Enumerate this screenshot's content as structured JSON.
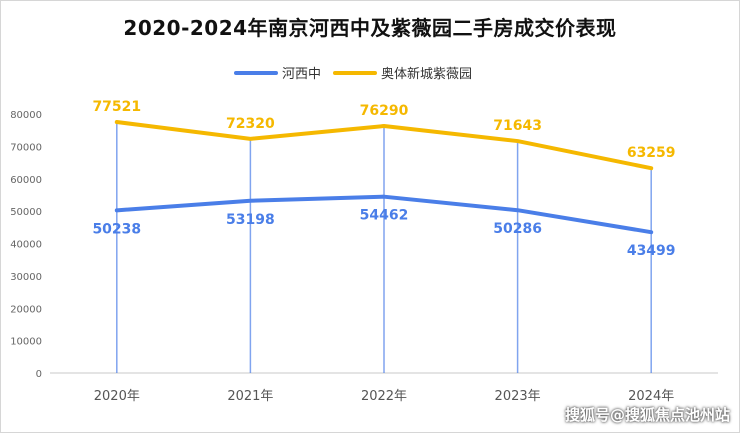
{
  "chart_data": {
    "type": "line",
    "title": "2020-2024年南京河西中及紫薇园二手房成交价表现",
    "categories": [
      "2020年",
      "2021年",
      "2022年",
      "2023年",
      "2024年"
    ],
    "series": [
      {
        "name": "河西中",
        "values": [
          50238,
          53198,
          54462,
          50286,
          43499
        ],
        "color": "#4a7ee8"
      },
      {
        "name": "奥体新城紫薇园",
        "values": [
          77521,
          72320,
          76290,
          71643,
          63259
        ],
        "color": "#f5b800"
      }
    ],
    "ylim": [
      0,
      80000
    ],
    "yticks": [
      0,
      10000,
      20000,
      30000,
      40000,
      50000,
      60000,
      70000,
      80000
    ],
    "grid": false,
    "legend": "top"
  },
  "watermark": "搜狐号@搜狐焦点池州站"
}
